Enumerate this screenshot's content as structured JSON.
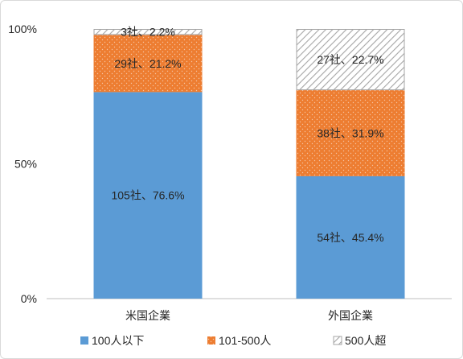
{
  "chart_data": {
    "type": "bar",
    "stacked": true,
    "categories": [
      "米国企業",
      "外国企業"
    ],
    "series": [
      {
        "name": "100人以下",
        "values": [
          76.6,
          45.4
        ],
        "counts": [
          105,
          54
        ],
        "labels": [
          "105社、76.6%",
          "54社、45.4%"
        ],
        "color": "#5b9bd5"
      },
      {
        "name": "101-500人",
        "values": [
          21.2,
          31.9
        ],
        "counts": [
          29,
          38
        ],
        "labels": [
          "29社、21.2%",
          "38社、31.9%"
        ],
        "color": "#ed7d31"
      },
      {
        "name": "500人超",
        "values": [
          2.2,
          22.7
        ],
        "counts": [
          3,
          27
        ],
        "labels": [
          "3社、2.2%",
          "27社、22.7%"
        ],
        "color": "#d9d9d9"
      }
    ],
    "yticks": [
      "0%",
      "50%",
      "100%"
    ],
    "ylim": [
      0,
      100
    ],
    "legend": "bottom"
  }
}
